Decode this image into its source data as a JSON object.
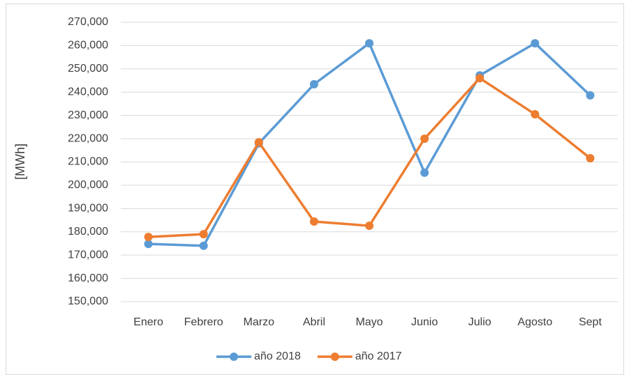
{
  "chart_data": {
    "type": "line",
    "y_label": "[MWh]",
    "categories": [
      "Enero",
      "Febrero",
      "Marzo",
      "Abril",
      "Mayo",
      "Junio",
      "Julio",
      "Agosto",
      "Sept"
    ],
    "series": [
      {
        "name": "año 2018",
        "color": "#5b9bd5",
        "values": [
          174800,
          174000,
          218000,
          243400,
          261000,
          205400,
          247200,
          261000,
          238600
        ]
      },
      {
        "name": "año 2017",
        "color": "#ed7d31",
        "values": [
          177800,
          179000,
          218500,
          184400,
          182600,
          220000,
          246000,
          230500,
          211600
        ]
      }
    ],
    "ylim": [
      150000,
      270000
    ],
    "yticks": [
      {
        "value": 150000,
        "label": "150,000"
      },
      {
        "value": 160000,
        "label": "160,000"
      },
      {
        "value": 170000,
        "label": "170,000"
      },
      {
        "value": 180000,
        "label": "180,000"
      },
      {
        "value": 190000,
        "label": "190,000"
      },
      {
        "value": 200000,
        "label": "200,000"
      },
      {
        "value": 210000,
        "label": "210,000"
      },
      {
        "value": 220000,
        "label": "220,000"
      },
      {
        "value": 230000,
        "label": "230,000"
      },
      {
        "value": 240000,
        "label": "240,000"
      },
      {
        "value": 250000,
        "label": "250,000"
      },
      {
        "value": 260000,
        "label": "260,000"
      },
      {
        "value": 270000,
        "label": "270,000"
      }
    ],
    "grid": true,
    "legend": "bottom"
  }
}
